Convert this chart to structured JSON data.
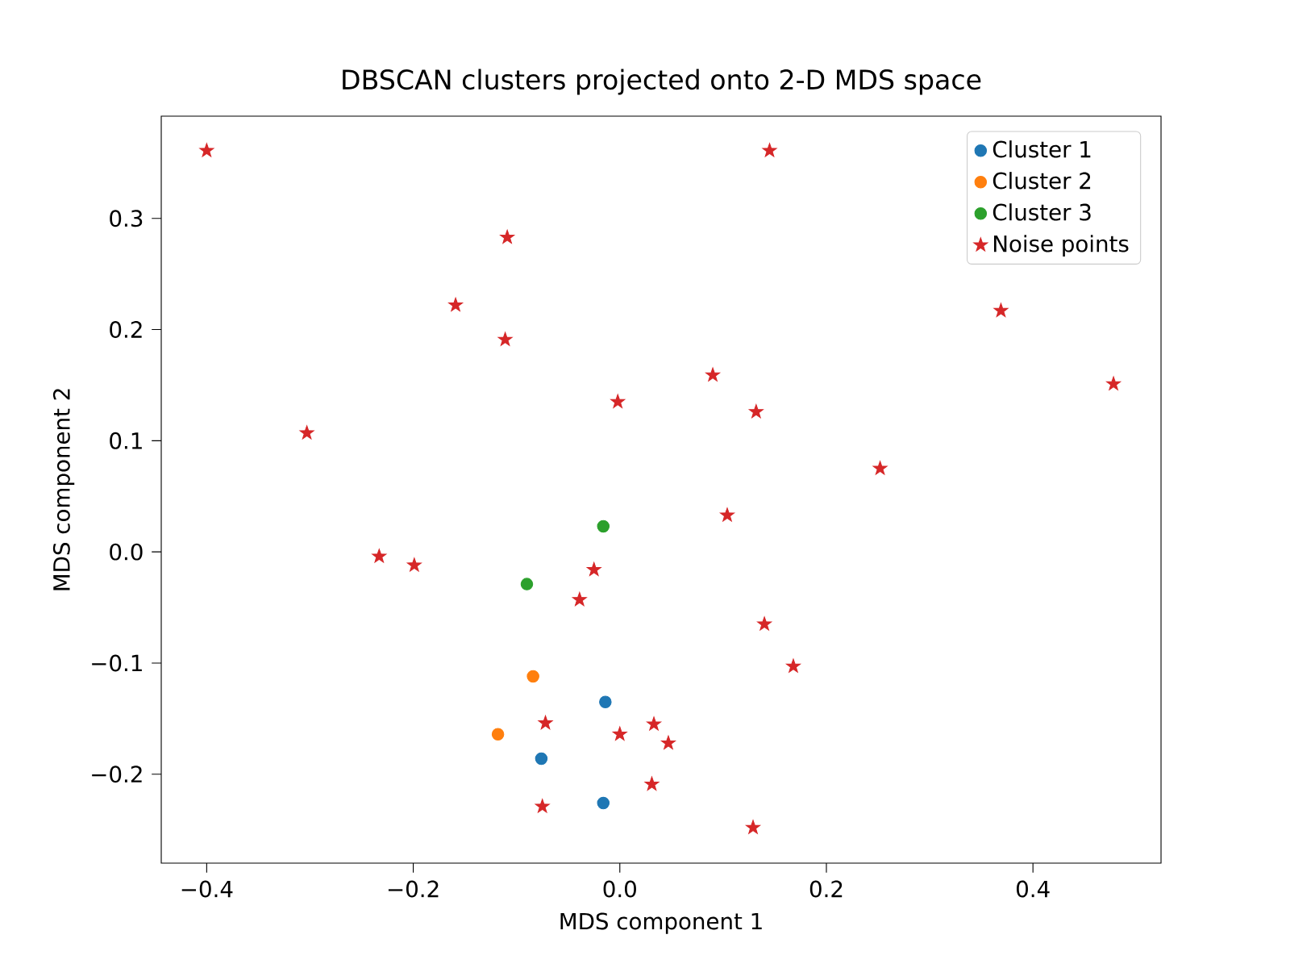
{
  "chart_data": {
    "type": "scatter",
    "title": "DBSCAN clusters projected onto 2-D MDS space",
    "xlabel": "MDS component 1",
    "ylabel": "MDS component 2",
    "xlim": [
      -0.444,
      0.524
    ],
    "ylim": [
      -0.28,
      0.392
    ],
    "xticks": [
      {
        "value": -0.4,
        "label": "−0.4"
      },
      {
        "value": -0.2,
        "label": "−0.2"
      },
      {
        "value": 0,
        "label": "0.0"
      },
      {
        "value": 0.2,
        "label": "0.2"
      },
      {
        "value": 0.4,
        "label": "0.4"
      }
    ],
    "yticks": [
      {
        "value": -0.2,
        "label": "−0.2"
      },
      {
        "value": -0.1,
        "label": "−0.1"
      },
      {
        "value": 0,
        "label": "0.0"
      },
      {
        "value": 0.1,
        "label": "0.1"
      },
      {
        "value": 0.2,
        "label": "0.2"
      },
      {
        "value": 0.3,
        "label": "0.3"
      }
    ],
    "legend": "top right",
    "series": [
      {
        "name": "Cluster 1",
        "color": "#1f77b4",
        "marker": "circle",
        "x": [
          -0.014,
          -0.076,
          -0.016
        ],
        "values": [
          -0.135,
          -0.186,
          -0.226
        ]
      },
      {
        "name": "Cluster 2",
        "color": "#ff7f0e",
        "marker": "circle",
        "x": [
          -0.084,
          -0.118
        ],
        "values": [
          -0.112,
          -0.164
        ]
      },
      {
        "name": "Cluster 3",
        "color": "#2ca02c",
        "marker": "circle",
        "x": [
          -0.016,
          -0.09
        ],
        "values": [
          0.023,
          -0.029
        ]
      },
      {
        "name": "Noise points",
        "color": "#d62728",
        "marker": "star",
        "x": [
          -0.4,
          0.145,
          -0.109,
          -0.159,
          -0.111,
          0.369,
          0.478,
          -0.303,
          -0.002,
          0.09,
          0.132,
          0.252,
          0.104,
          -0.233,
          -0.199,
          -0.025,
          -0.039,
          0.14,
          0.168,
          -0.072,
          0.033,
          0.0,
          0.047,
          -0.075,
          0.031,
          0.129
        ],
        "values": [
          0.361,
          0.361,
          0.283,
          0.222,
          0.191,
          0.217,
          0.151,
          0.107,
          0.135,
          0.159,
          0.126,
          0.075,
          0.033,
          -0.004,
          -0.012,
          -0.016,
          -0.043,
          -0.065,
          -0.103,
          -0.154,
          -0.155,
          -0.164,
          -0.172,
          -0.229,
          -0.209,
          -0.248
        ]
      }
    ]
  }
}
